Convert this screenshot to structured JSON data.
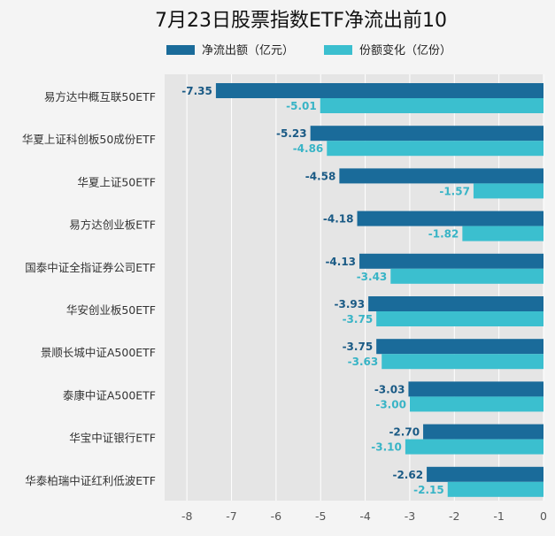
{
  "chart_data": {
    "type": "bar",
    "orientation": "horizontal",
    "title": "7月23日股票指数ETF净流出前10",
    "legend_position": "top",
    "categories": [
      "易方达中概互联50ETF",
      "华夏上证科创板50成份ETF",
      "华夏上证50ETF",
      "易方达创业板ETF",
      "国泰中证全指证券公司ETF",
      "华安创业板50ETF",
      "景顺长城中证A500ETF",
      "泰康中证A500ETF",
      "华宝中证银行ETF",
      "华泰柏瑞中证红利低波ETF"
    ],
    "series": [
      {
        "name": "净流出额（亿元）",
        "color": "#1a6b9a",
        "label_color": "#1a5a85",
        "values": [
          -7.35,
          -5.23,
          -4.58,
          -4.18,
          -4.13,
          -3.93,
          -3.75,
          -3.03,
          -2.7,
          -2.62
        ],
        "labels": [
          "-7.35",
          "-5.23",
          "-4.58",
          "-4.18",
          "-4.13",
          "-3.93",
          "-3.75",
          "-3.03",
          "-2.70",
          "-2.62"
        ]
      },
      {
        "name": "份额变化（亿份）",
        "color": "#3bbfcf",
        "label_color": "#38b4c6",
        "values": [
          -5.01,
          -4.86,
          -1.57,
          -1.82,
          -3.43,
          -3.75,
          -3.63,
          -3.0,
          -3.1,
          -2.15
        ],
        "labels": [
          "-5.01",
          "-4.86",
          "-1.57",
          "-1.82",
          "-3.43",
          "-3.75",
          "-3.63",
          "-3.00",
          "-3.10",
          "-2.15"
        ]
      }
    ],
    "xlim": [
      -8.5,
      0
    ],
    "xticks": [
      -8,
      -7,
      -6,
      -5,
      -4,
      -3,
      -2,
      -1,
      0
    ],
    "xtick_labels": [
      "-8",
      "-7",
      "-6",
      "-5",
      "-4",
      "-3",
      "-2",
      "-1",
      "0"
    ],
    "grid": true
  },
  "colors": {
    "plot_bg": "#e5e5e5",
    "grid": "#ffffff"
  }
}
